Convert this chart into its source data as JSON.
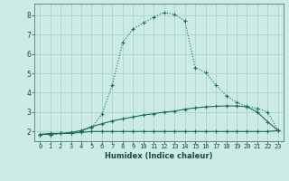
{
  "xlabel": "Humidex (Indice chaleur)",
  "background_color": "#cceae6",
  "grid_color": "#aad4cf",
  "line_color": "#1a6b5a",
  "x_values": [
    0,
    1,
    2,
    3,
    4,
    5,
    6,
    7,
    8,
    9,
    10,
    11,
    12,
    13,
    14,
    15,
    16,
    17,
    18,
    19,
    20,
    21,
    22,
    23
  ],
  "line1_y": [
    1.85,
    1.85,
    1.9,
    1.9,
    2.0,
    2.2,
    2.9,
    4.4,
    6.6,
    7.3,
    7.6,
    7.9,
    8.15,
    8.05,
    7.7,
    5.3,
    5.05,
    4.4,
    3.85,
    3.5,
    3.3,
    3.2,
    3.0,
    2.05
  ],
  "line2_y": [
    1.85,
    1.9,
    1.9,
    1.95,
    2.05,
    2.25,
    2.4,
    2.55,
    2.65,
    2.75,
    2.85,
    2.92,
    3.0,
    3.05,
    3.15,
    3.22,
    3.27,
    3.3,
    3.32,
    3.32,
    3.28,
    3.0,
    2.5,
    2.05
  ],
  "line3_y": [
    1.85,
    1.85,
    1.9,
    1.9,
    1.95,
    2.0,
    2.0,
    2.0,
    2.0,
    2.0,
    2.0,
    2.0,
    2.0,
    2.0,
    2.0,
    2.0,
    2.0,
    2.0,
    2.0,
    2.0,
    2.0,
    2.0,
    2.0,
    2.05
  ],
  "xlim": [
    -0.5,
    23.5
  ],
  "ylim": [
    1.5,
    8.6
  ],
  "yticks": [
    2,
    3,
    4,
    5,
    6,
    7,
    8
  ],
  "xticks": [
    0,
    1,
    2,
    3,
    4,
    5,
    6,
    7,
    8,
    9,
    10,
    11,
    12,
    13,
    14,
    15,
    16,
    17,
    18,
    19,
    20,
    21,
    22,
    23
  ],
  "tick_fontsize": 5.0,
  "xlabel_fontsize": 6.0
}
